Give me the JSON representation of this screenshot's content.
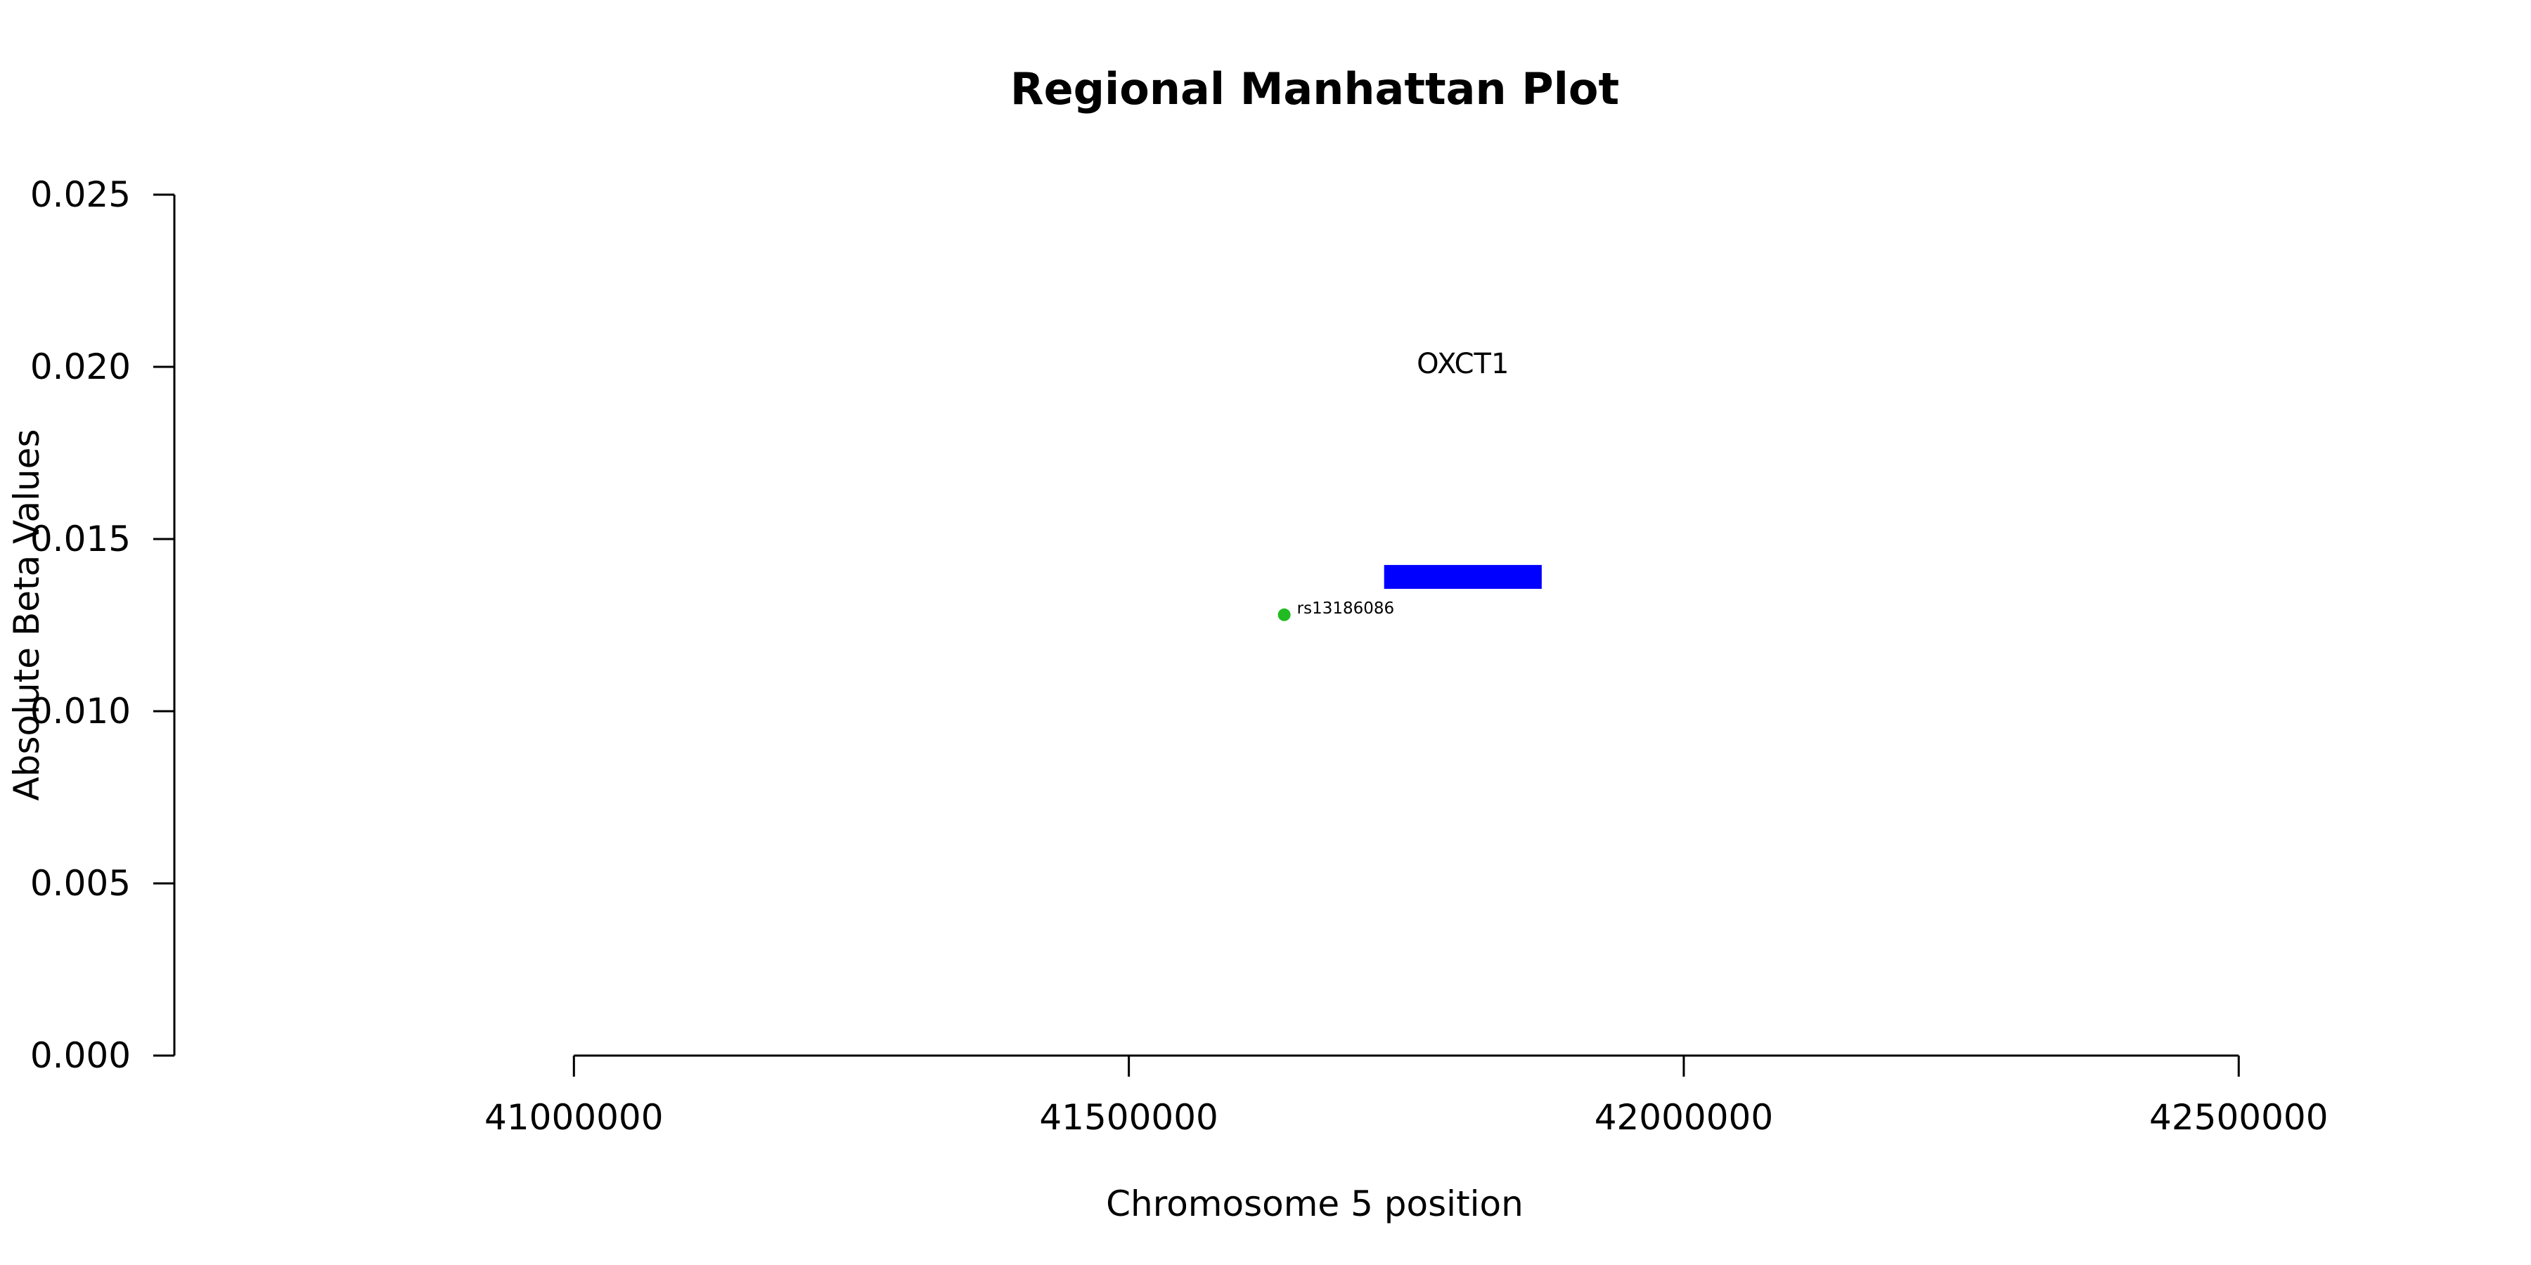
{
  "chart_data": {
    "type": "scatter",
    "title": "Regional Manhattan Plot",
    "xlabel": "Chromosome 5 position",
    "ylabel": "Absolute Beta Values",
    "xlim": [
      40640000,
      42700000
    ],
    "ylim": [
      0,
      0.025
    ],
    "x_ticks": [
      41000000,
      41500000,
      42000000,
      42500000
    ],
    "x_tick_labels": [
      "41000000",
      "41500000",
      "42000000",
      "42500000"
    ],
    "y_ticks": [
      0,
      0.005,
      0.01,
      0.015,
      0.02,
      0.025
    ],
    "y_tick_labels": [
      "0.000",
      "0.005",
      "0.010",
      "0.015",
      "0.020",
      "0.025"
    ],
    "grid": false,
    "points": [
      {
        "label": "rs13186086",
        "x": 41640000,
        "y": 0.0128,
        "color": "#22bb22"
      }
    ],
    "genes": [
      {
        "name": "OXCT1",
        "start": 41730000,
        "end": 41872000,
        "y": 0.0139,
        "label_y": 0.0201,
        "color": "#0000ff"
      }
    ]
  }
}
